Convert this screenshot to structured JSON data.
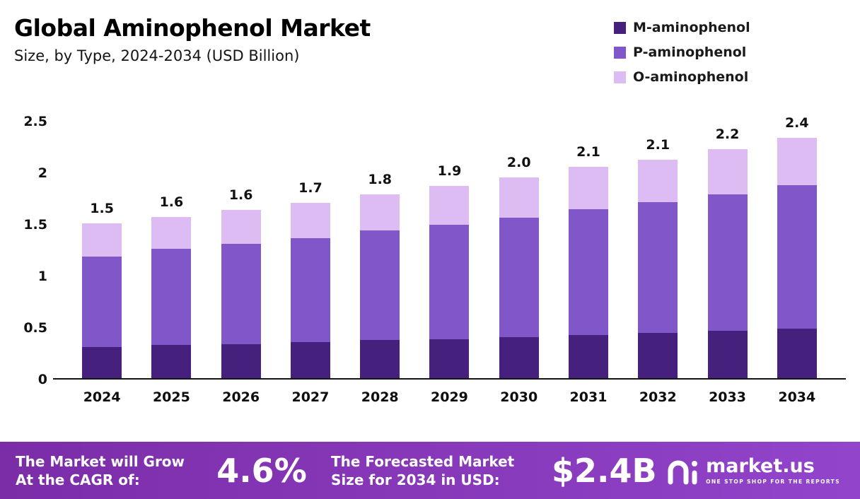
{
  "header": {
    "title": "Global Aminophenol Market",
    "subtitle": "Size, by Type, 2024-2034 (USD Billion)"
  },
  "legend": [
    {
      "label": "M-aminophenol",
      "color": "#45217d"
    },
    {
      "label": "P-aminophenol",
      "color": "#8156c8"
    },
    {
      "label": "O-aminophenol",
      "color": "#dcbcf2"
    }
  ],
  "chart_data": {
    "type": "bar",
    "stacked": true,
    "title": "Global Aminophenol Market Size, by Type, 2024-2034 (USD Billion)",
    "categories": [
      "2024",
      "2025",
      "2026",
      "2027",
      "2028",
      "2029",
      "2030",
      "2031",
      "2032",
      "2033",
      "2034"
    ],
    "series": [
      {
        "name": "M-aminophenol",
        "color": "#45217d",
        "values": [
          0.3,
          0.32,
          0.33,
          0.35,
          0.37,
          0.38,
          0.4,
          0.42,
          0.44,
          0.46,
          0.48
        ]
      },
      {
        "name": "P-aminophenol",
        "color": "#8156c8",
        "values": [
          0.88,
          0.93,
          0.97,
          1.01,
          1.06,
          1.11,
          1.16,
          1.22,
          1.27,
          1.32,
          1.39
        ]
      },
      {
        "name": "O-aminophenol",
        "color": "#dcbcf2",
        "values": [
          0.32,
          0.31,
          0.33,
          0.34,
          0.35,
          0.38,
          0.39,
          0.41,
          0.41,
          0.44,
          0.46
        ]
      }
    ],
    "totals": [
      "1.5",
      "1.6",
      "1.6",
      "1.7",
      "1.8",
      "1.9",
      "2.0",
      "2.1",
      "2.1",
      "2.2",
      "2.4"
    ],
    "xlabel": "",
    "ylabel": "",
    "ylim": [
      0,
      2.5
    ],
    "yticks": [
      {
        "v": 0,
        "label": "0"
      },
      {
        "v": 0.5,
        "label": "0.5"
      },
      {
        "v": 1,
        "label": "1"
      },
      {
        "v": 1.5,
        "label": "1.5"
      },
      {
        "v": 2,
        "label": "2"
      },
      {
        "v": 2.5,
        "label": "2.5"
      }
    ],
    "grid": false,
    "legend_position": "top-right"
  },
  "footer": {
    "cagr_label": "The Market will Grow At the CAGR of:",
    "cagr_value": "4.6%",
    "forecast_label": "The Forecasted Market Size for 2034 in USD:",
    "forecast_value": "$2.4B",
    "brand": "market.us",
    "brand_tagline": "ONE STOP SHOP FOR THE REPORTS"
  }
}
